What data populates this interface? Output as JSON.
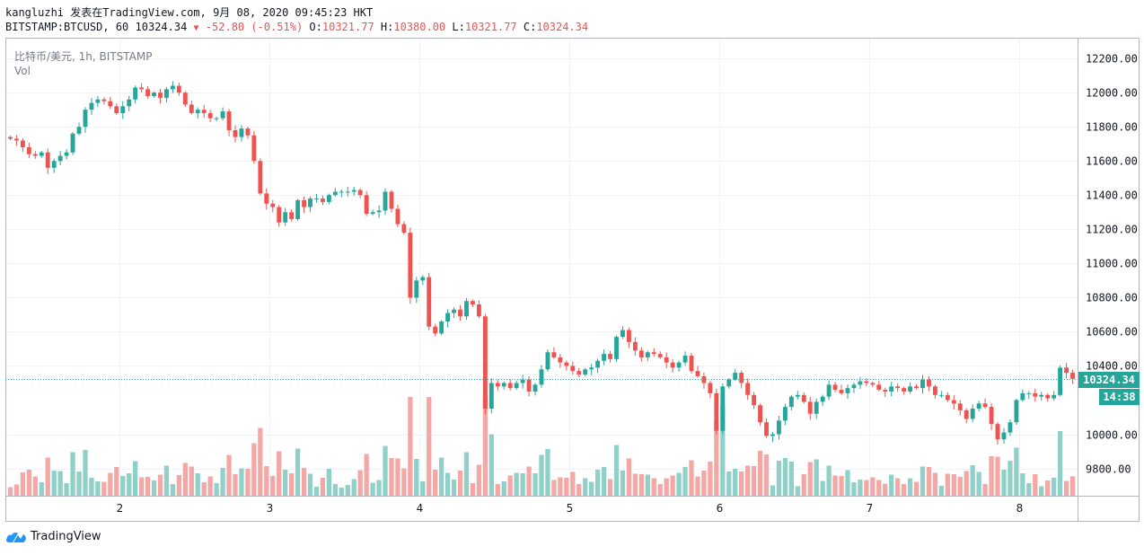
{
  "header": {
    "publish_line": "kangluzhi 发表在TradingView.com, 9月 08, 2020 09:45:23 HKT",
    "symbol": "BITSTAMP:BTCUSD, 60",
    "last": "10324.34",
    "change": "-52.80 (-0.51%)",
    "o_label": "O:",
    "o_value": "10321.77",
    "h_label": "H:",
    "h_value": "10380.00",
    "l_label": "L:",
    "l_value": "10321.77",
    "c_label": "C:",
    "c_value": "10324.34"
  },
  "legend": {
    "series": "比特币/美元, 1h, BITSTAMP",
    "volume": "Vol"
  },
  "brand": {
    "name": "TradingView"
  },
  "colors": {
    "up": "#26a69a",
    "down": "#ef5350",
    "up_vol": "#8fd1c9",
    "down_vol": "#f3a8a6"
  },
  "chart_data": {
    "type": "candlestick",
    "y_ticks": [
      "12200.00",
      "12000.00",
      "11800.00",
      "11600.00",
      "11400.00",
      "11200.00",
      "11000.00",
      "10800.00",
      "10600.00",
      "10400.00",
      "10000.00",
      "9800.00"
    ],
    "x_ticks": [
      "2",
      "3",
      "4",
      "5",
      "6",
      "7",
      "8"
    ],
    "ylim": [
      9640,
      12290
    ],
    "current_price": "10324.34",
    "countdown": "14:38",
    "close": [
      11730,
      11720,
      11680,
      11640,
      11630,
      11650,
      11560,
      11600,
      11630,
      11650,
      11760,
      11800,
      11900,
      11940,
      11960,
      11950,
      11920,
      11880,
      11920,
      11960,
      12030,
      12020,
      11980,
      12000,
      11970,
      12020,
      12040,
      12000,
      11930,
      11880,
      11900,
      11880,
      11850,
      11850,
      11890,
      11780,
      11740,
      11790,
      11750,
      11600,
      11410,
      11350,
      11330,
      11240,
      11300,
      11260,
      11370,
      11330,
      11380,
      11380,
      11360,
      11400,
      11420,
      11420,
      11420,
      11430,
      11400,
      11290,
      11300,
      11310,
      11420,
      11320,
      11230,
      11180,
      10800,
      10900,
      10920,
      10630,
      10590,
      10660,
      10710,
      10730,
      10690,
      10780,
      10760,
      10690,
      10150,
      10300,
      10280,
      10300,
      10270,
      10300,
      10320,
      10250,
      10290,
      10380,
      10480,
      10450,
      10420,
      10400,
      10370,
      10350,
      10380,
      10390,
      10430,
      10470,
      10440,
      10570,
      10610,
      10540,
      10490,
      10450,
      10480,
      10470,
      10450,
      10420,
      10390,
      10420,
      10460,
      10370,
      10340,
      10300,
      10240,
      10020,
      10280,
      10320,
      10360,
      10300,
      10230,
      10170,
      10070,
      9990,
      10000,
      10080,
      10160,
      10220,
      10230,
      10190,
      10120,
      10190,
      10220,
      10290,
      10260,
      10240,
      10270,
      10290,
      10310,
      10300,
      10290,
      10260,
      10250,
      10280,
      10270,
      10250,
      10280,
      10270,
      10320,
      10280,
      10230,
      10230,
      10200,
      10180,
      10140,
      10090,
      10150,
      10180,
      10160,
      10060,
      9970,
      10010,
      10070,
      10200,
      10240,
      10240,
      10220,
      10230,
      10210,
      10230,
      10390,
      10360,
      10324
    ],
    "volume_scale": "relative"
  }
}
